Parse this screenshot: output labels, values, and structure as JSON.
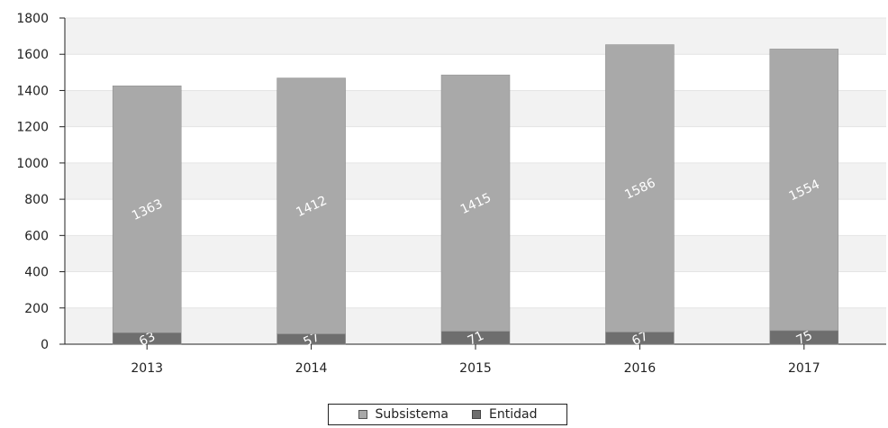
{
  "chart_data": {
    "type": "bar",
    "stacked": true,
    "categories": [
      "2013",
      "2014",
      "2015",
      "2016",
      "2017"
    ],
    "series": [
      {
        "name": "Entidad",
        "values": [
          63,
          57,
          71,
          67,
          75
        ],
        "color": "#6e6e6e"
      },
      {
        "name": "Subsistema",
        "values": [
          1363,
          1412,
          1415,
          1586,
          1554
        ],
        "color": "#a9a9a9"
      }
    ],
    "ylim": [
      0,
      1800
    ],
    "yticks": [
      0,
      200,
      400,
      600,
      800,
      1000,
      1200,
      1400,
      1600,
      1800
    ],
    "data_labels": true,
    "legend_position": "bottom-center",
    "title": "",
    "xlabel": "",
    "ylabel": ""
  }
}
